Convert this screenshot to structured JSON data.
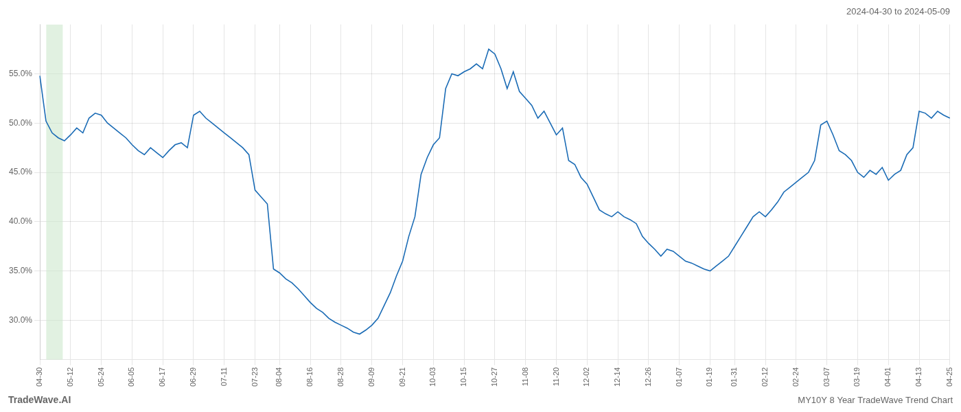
{
  "chart_data": {
    "type": "line",
    "subtitle": "2024-04-30 to 2024-05-09",
    "annotations": [
      "TradeWave.AI",
      "MY10Y 8 Year TradeWave Trend Chart"
    ],
    "color": "#1a6bb5",
    "grid": true,
    "ylim": [
      26,
      60
    ],
    "yticks": [
      {
        "value": 30.0,
        "label": "30.0%"
      },
      {
        "value": 35.0,
        "label": "35.0%"
      },
      {
        "value": 40.0,
        "label": "40.0%"
      },
      {
        "value": 45.0,
        "label": "45.0%"
      },
      {
        "value": 50.0,
        "label": "50.0%"
      },
      {
        "value": 55.0,
        "label": "55.0%"
      }
    ],
    "shaded_region": {
      "start": 1.043,
      "end": 3.725,
      "color": "#c8e6c9"
    },
    "categories": [
      "04-30",
      null,
      null,
      null,
      null,
      "05-12",
      null,
      null,
      null,
      null,
      "05-24",
      null,
      null,
      null,
      null,
      "06-05",
      null,
      null,
      null,
      null,
      "06-17",
      null,
      null,
      null,
      null,
      "06-29",
      null,
      null,
      null,
      null,
      "07-11",
      null,
      null,
      null,
      null,
      "07-23",
      null,
      null,
      null,
      "08-04",
      null,
      null,
      null,
      null,
      "08-16",
      null,
      null,
      null,
      null,
      "08-28",
      null,
      null,
      null,
      null,
      "09-09",
      null,
      null,
      null,
      null,
      "09-21",
      null,
      null,
      null,
      null,
      "10-03",
      null,
      null,
      null,
      null,
      "10-15",
      null,
      null,
      null,
      null,
      "10-27",
      null,
      null,
      null,
      null,
      "11-08",
      null,
      null,
      null,
      null,
      "11-20",
      null,
      null,
      null,
      null,
      "12-02",
      null,
      null,
      null,
      null,
      "12-14",
      null,
      null,
      null,
      null,
      "12-26",
      null,
      null,
      null,
      null,
      "01-07",
      null,
      null,
      null,
      null,
      "01-19",
      null,
      null,
      null,
      "01-31",
      null,
      null,
      null,
      null,
      "02-12",
      null,
      null,
      null,
      null,
      "02-24",
      null,
      null,
      null,
      null,
      "03-07",
      null,
      null,
      null,
      null,
      "03-19",
      null,
      null,
      null,
      null,
      "04-01",
      null,
      null,
      null,
      null,
      "04-13",
      null,
      null,
      null,
      null,
      "04-25"
    ],
    "values": [
      54.8,
      50.2,
      49.0,
      48.5,
      48.2,
      48.8,
      49.5,
      49.0,
      50.5,
      51.0,
      50.8,
      50.0,
      49.5,
      49.0,
      48.5,
      47.8,
      47.2,
      46.8,
      47.5,
      47.0,
      46.5,
      47.2,
      47.8,
      48.0,
      47.5,
      50.8,
      51.2,
      50.5,
      50.0,
      49.5,
      49.0,
      48.5,
      48.0,
      47.5,
      46.8,
      43.2,
      42.5,
      41.8,
      35.2,
      34.8,
      34.2,
      33.8,
      33.2,
      32.5,
      31.8,
      31.2,
      30.8,
      30.2,
      29.8,
      29.5,
      29.2,
      28.8,
      28.6,
      29.0,
      29.5,
      30.2,
      31.5,
      32.8,
      34.5,
      36.0,
      38.5,
      40.5,
      44.8,
      46.5,
      47.8,
      48.5,
      53.5,
      55.0,
      54.8,
      55.2,
      55.5,
      56.0,
      55.5,
      57.5,
      57.0,
      55.5,
      53.5,
      55.2,
      53.2,
      52.5,
      51.8,
      50.5,
      51.2,
      50.0,
      48.8,
      49.5,
      46.2,
      45.8,
      44.5,
      43.8,
      42.5,
      41.2,
      40.8,
      40.5,
      41.0,
      40.5,
      40.2,
      39.8,
      38.5,
      37.8,
      37.2,
      36.5,
      37.2,
      37.0,
      36.5,
      36.0,
      35.8,
      35.5,
      35.2,
      35.0,
      35.5,
      36.0,
      36.5,
      37.5,
      38.5,
      39.5,
      40.5,
      41.0,
      40.5,
      41.2,
      42.0,
      43.0,
      43.5,
      44.0,
      44.5,
      45.0,
      46.2,
      49.8,
      50.2,
      48.8,
      47.2,
      46.8,
      46.2,
      45.0,
      44.5,
      45.2,
      44.8,
      45.5,
      44.2,
      44.8,
      45.2,
      46.8,
      47.5,
      51.2,
      51.0,
      50.5,
      51.2,
      50.8,
      50.5
    ]
  }
}
